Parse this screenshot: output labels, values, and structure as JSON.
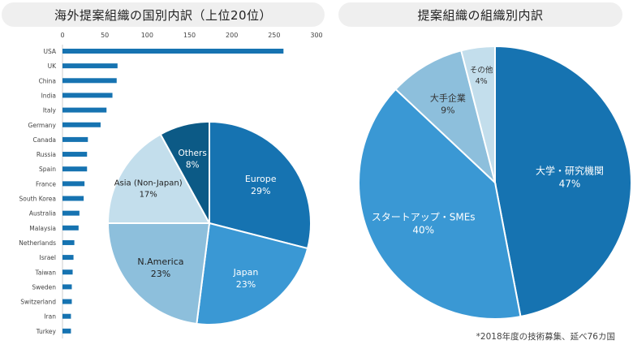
{
  "left_header": "海外提案組織の国別内訳（上位20位）",
  "right_header": "提案組織の組織別内訳",
  "footnote": "*2018年度の技術募集、延べ76カ国",
  "colors": {
    "bar": "#1673b1",
    "darkest": "#0c5a86",
    "dark": "#1673b1",
    "mid": "#3a98d4",
    "light": "#8dbfdc",
    "lightest": "#c3deec"
  },
  "chart_data": [
    {
      "type": "bar",
      "orientation": "horizontal",
      "categories": [
        "USA",
        "UK",
        "China",
        "India",
        "Italy",
        "Germany",
        "Canada",
        "Russia",
        "Spain",
        "France",
        "South Korea",
        "Australia",
        "Malaysia",
        "Netherlands",
        "Israel",
        "Taiwan",
        "Sweden",
        "Switzerland",
        "Iran",
        "Turkey"
      ],
      "values": [
        261,
        65,
        64,
        59,
        52,
        45,
        30,
        29,
        29,
        26,
        25,
        20,
        19,
        14,
        13,
        12,
        11,
        11,
        10,
        10
      ],
      "xlim": [
        0,
        300
      ],
      "xticks": [
        0,
        50,
        100,
        150,
        200,
        250,
        300
      ],
      "grid": false
    },
    {
      "type": "pie",
      "labels": [
        "Europe",
        "Japan",
        "N.America",
        "Asia (Non-Japan)",
        "Others"
      ],
      "values": [
        29,
        23,
        23,
        17,
        8
      ],
      "value_labels": [
        "29%",
        "23%",
        "23%",
        "17%",
        "8%"
      ],
      "colors": [
        "#1673b1",
        "#3a98d4",
        "#8dbfdc",
        "#c3deec",
        "#0c5a86"
      ],
      "label_colors": [
        "#ffffff",
        "#ffffff",
        "#222222",
        "#222222",
        "#ffffff"
      ]
    },
    {
      "type": "pie",
      "labels": [
        "大学・研究機関",
        "スタートアップ・SMEs",
        "大手企業",
        "その他"
      ],
      "values": [
        47,
        40,
        9,
        4
      ],
      "value_labels": [
        "47%",
        "40%",
        "9%",
        "4%"
      ],
      "colors": [
        "#1673b1",
        "#3a98d4",
        "#8dbfdc",
        "#c3deec"
      ],
      "label_colors": [
        "#ffffff",
        "#ffffff",
        "#333333",
        "#333333"
      ]
    }
  ]
}
